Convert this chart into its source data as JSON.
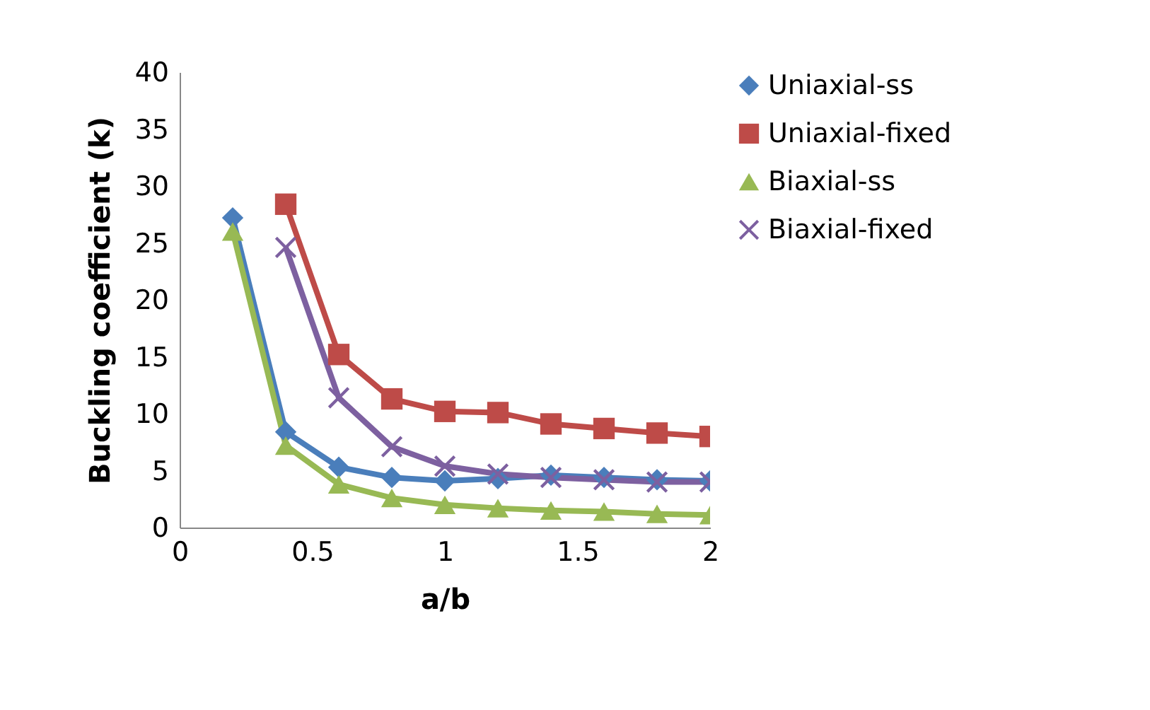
{
  "chart_data": {
    "type": "line",
    "xlabel": "a/b",
    "ylabel": "Buckling coefficient (k)",
    "x": [
      0.2,
      0.4,
      0.6,
      0.8,
      1.0,
      1.2,
      1.4,
      1.6,
      1.8,
      2.0
    ],
    "xlim": [
      0,
      2
    ],
    "xticks": [
      0,
      0.5,
      1,
      1.5,
      2
    ],
    "ylim": [
      0,
      40
    ],
    "yticks": [
      0,
      5,
      10,
      15,
      20,
      25,
      30,
      35,
      40
    ],
    "grid": false,
    "legend": "right",
    "series": [
      {
        "name": "Uniaxial-ss",
        "color": "#4a7ebb",
        "marker": "diamond",
        "values": [
          27.2,
          8.4,
          5.3,
          4.4,
          4.1,
          4.3,
          4.6,
          4.4,
          4.2,
          4.1
        ]
      },
      {
        "name": "Uniaxial-fixed",
        "color": "#be4b48",
        "marker": "square",
        "values": [
          null,
          28.4,
          15.2,
          11.3,
          10.2,
          10.1,
          9.1,
          8.7,
          8.3,
          8.0
        ]
      },
      {
        "name": "Biaxial-ss",
        "color": "#98b954",
        "marker": "triangle",
        "values": [
          26.0,
          7.2,
          3.8,
          2.6,
          2.0,
          1.7,
          1.5,
          1.4,
          1.2,
          1.1
        ]
      },
      {
        "name": "Biaxial-fixed",
        "color": "#7d60a0",
        "marker": "cross",
        "values": [
          null,
          24.6,
          11.4,
          7.1,
          5.4,
          4.7,
          4.4,
          4.2,
          4.0,
          4.0
        ]
      }
    ]
  }
}
